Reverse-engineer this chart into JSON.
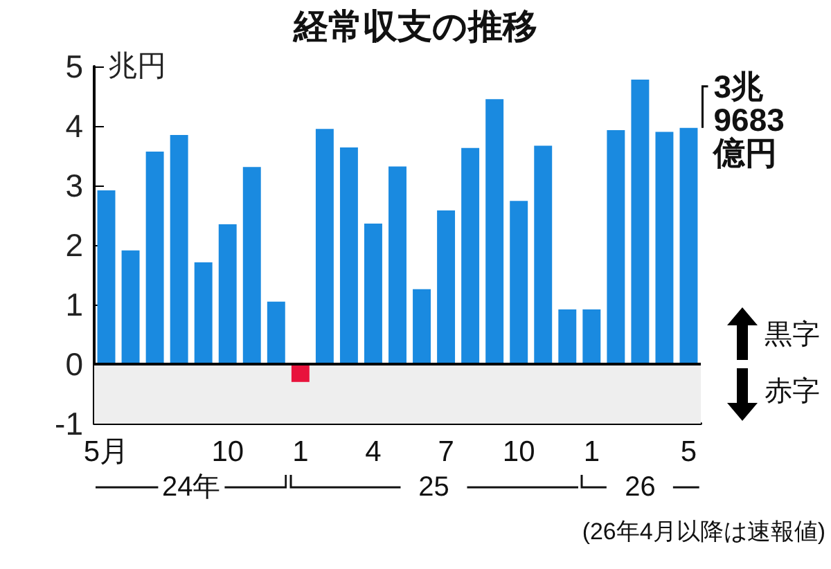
{
  "chart_data": {
    "type": "bar",
    "title": "経常収支の推移",
    "ylabel": "兆円",
    "categories": [
      "5月",
      null,
      null,
      null,
      null,
      "10",
      null,
      null,
      "1",
      null,
      null,
      "4",
      null,
      null,
      "7",
      null,
      null,
      "10",
      null,
      null,
      "1",
      null,
      null,
      null,
      "5"
    ],
    "values": [
      2.92,
      1.91,
      3.57,
      3.85,
      1.71,
      2.35,
      3.31,
      1.05,
      -0.3,
      3.95,
      3.64,
      2.36,
      3.32,
      1.26,
      2.58,
      3.63,
      4.45,
      2.74,
      3.67,
      0.92,
      0.92,
      3.93,
      4.78,
      3.9,
      3.9683
    ],
    "colors": [
      "#1a8ae0",
      "#1a8ae0",
      "#1a8ae0",
      "#1a8ae0",
      "#1a8ae0",
      "#1a8ae0",
      "#1a8ae0",
      "#1a8ae0",
      "#e8133c",
      "#1a8ae0",
      "#1a8ae0",
      "#1a8ae0",
      "#1a8ae0",
      "#1a8ae0",
      "#1a8ae0",
      "#1a8ae0",
      "#1a8ae0",
      "#1a8ae0",
      "#1a8ae0",
      "#1a8ae0",
      "#1a8ae0",
      "#1a8ae0",
      "#1a8ae0",
      "#1a8ae0",
      "#1a8ae0"
    ],
    "ylim": [
      -1,
      5
    ],
    "yticks": [
      -1,
      0,
      1,
      2,
      3,
      4,
      5
    ],
    "grid": false,
    "bands": [
      {
        "axis": "y",
        "from": -1,
        "to": 0,
        "color": "#eeeeee"
      }
    ],
    "ref_lines": [
      {
        "axis": "y",
        "value": 0,
        "color": "#000000"
      }
    ],
    "annotations": [
      {
        "text": "3兆\n9683\n億円",
        "x": "5",
        "y": 3.9683
      },
      "黒字",
      "赤字",
      "24年",
      "25",
      "26",
      "(26年4月以降は速報値)"
    ]
  }
}
